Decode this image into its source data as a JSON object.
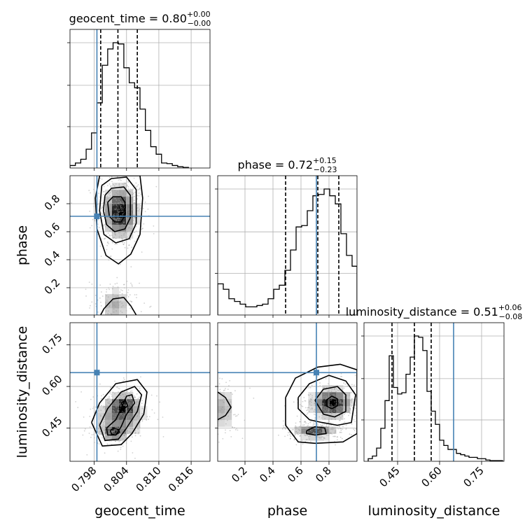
{
  "chart_data": {
    "type": "corner",
    "grid": true,
    "colors": {
      "histogram": "#000000",
      "quantile_line": "#000000",
      "truth": "#4682b4",
      "samples": "#9a9a9a",
      "grid": "#b0b0b0"
    },
    "parameters": [
      {
        "name": "geocent_time",
        "label": "geocent_time",
        "range": [
          0.7935,
          0.8195
        ],
        "ticks": [
          0.798,
          0.804,
          0.81,
          0.816
        ],
        "tick_labels": [
          "0.798",
          "0.804",
          "0.810",
          "0.816"
        ],
        "truth": 0.7985,
        "quantiles": [
          0.7992,
          0.8024,
          0.806
        ],
        "title": {
          "prefix": "geocent_time = ",
          "value": "0.80",
          "plus": "+0.00",
          "minus": "−0.00"
        },
        "hist": {
          "edges": [
            0.7935,
            0.7945,
            0.7955,
            0.7965,
            0.7975,
            0.7985,
            0.7995,
            0.8005,
            0.8015,
            0.8025,
            0.8035,
            0.8045,
            0.8055,
            0.8065,
            0.8075,
            0.8085,
            0.8095,
            0.8105,
            0.8115,
            0.8125,
            0.8135,
            0.8145,
            0.8155
          ],
          "counts": [
            0.02,
            0.04,
            0.07,
            0.15,
            0.28,
            0.52,
            0.82,
            0.95,
            1.0,
            0.99,
            0.8,
            0.68,
            0.64,
            0.47,
            0.3,
            0.17,
            0.11,
            0.04,
            0.035,
            0.02,
            0.01,
            0.005
          ]
        }
      },
      {
        "name": "phase",
        "label": "phase",
        "range": [
          0.005,
          1.0
        ],
        "ticks": [
          0.2,
          0.4,
          0.6,
          0.8
        ],
        "tick_labels": [
          "0.2",
          "0.4",
          "0.6",
          "0.8"
        ],
        "truth": 0.71,
        "quantiles": [
          0.49,
          0.72,
          0.87
        ],
        "title": {
          "prefix": "phase = ",
          "value": "0.72",
          "plus": "+0.15",
          "minus": "−0.23"
        },
        "hist": {
          "edges": [
            0.005,
            0.045,
            0.085,
            0.125,
            0.165,
            0.205,
            0.245,
            0.285,
            0.325,
            0.365,
            0.405,
            0.445,
            0.485,
            0.525,
            0.565,
            0.605,
            0.645,
            0.685,
            0.725,
            0.765,
            0.805,
            0.845,
            0.885,
            0.925,
            0.965,
            1.0
          ],
          "counts": [
            0.23,
            0.19,
            0.12,
            0.1,
            0.08,
            0.06,
            0.06,
            0.07,
            0.08,
            0.12,
            0.19,
            0.22,
            0.33,
            0.48,
            0.65,
            0.66,
            0.77,
            0.88,
            0.89,
            0.93,
            0.88,
            0.82,
            0.6,
            0.44,
            0.36
          ]
        }
      },
      {
        "name": "luminosity_distance",
        "label": "luminosity_distance",
        "range": [
          0.33,
          0.83
        ],
        "ticks": [
          0.45,
          0.6,
          0.75
        ],
        "tick_labels": [
          "0.45",
          "0.60",
          "0.75"
        ],
        "truth": 0.65,
        "quantiles": [
          0.43,
          0.51,
          0.57
        ],
        "title": {
          "prefix": "luminosity_distance = ",
          "value": "0.51",
          "plus": "+0.06",
          "minus": "−0.08"
        },
        "hist": {
          "edges": [
            0.345,
            0.36,
            0.375,
            0.39,
            0.405,
            0.42,
            0.435,
            0.45,
            0.465,
            0.48,
            0.495,
            0.51,
            0.525,
            0.54,
            0.555,
            0.57,
            0.585,
            0.6,
            0.615,
            0.63,
            0.645,
            0.66,
            0.675,
            0.69,
            0.705,
            0.72,
            0.735,
            0.75,
            0.765,
            0.78,
            0.795,
            0.81,
            0.825
          ],
          "counts": [
            0.02,
            0.04,
            0.1,
            0.25,
            0.46,
            0.8,
            0.56,
            0.51,
            0.52,
            0.66,
            0.79,
            0.95,
            0.94,
            0.84,
            0.53,
            0.38,
            0.28,
            0.16,
            0.12,
            0.09,
            0.09,
            0.06,
            0.05,
            0.04,
            0.03,
            0.03,
            0.02,
            0.02,
            0.01,
            0.005,
            0.005,
            0.005
          ]
        }
      }
    ],
    "pairs": [
      {
        "x": "geocent_time",
        "y": "phase",
        "blobs": [
          {
            "cx": 0.8028,
            "cy": 0.74,
            "sx": 0.0014,
            "sy": 0.085,
            "w": 1.0
          },
          {
            "cx": 0.8018,
            "cy": 0.08,
            "sx": 0.0014,
            "sy": 0.06,
            "w": 0.25
          }
        ],
        "contours": [
          [
            [
              0.8005,
              0.81
            ],
            [
              0.8015,
              0.85
            ],
            [
              0.803,
              0.85
            ],
            [
              0.8037,
              0.81
            ],
            [
              0.8037,
              0.72
            ],
            [
              0.803,
              0.67
            ],
            [
              0.8018,
              0.67
            ],
            [
              0.8008,
              0.71
            ],
            [
              0.8005,
              0.81
            ]
          ],
          [
            [
              0.8,
              0.86
            ],
            [
              0.8012,
              0.91
            ],
            [
              0.8035,
              0.92
            ],
            [
              0.8047,
              0.86
            ],
            [
              0.8047,
              0.7
            ],
            [
              0.8037,
              0.62
            ],
            [
              0.8018,
              0.6
            ],
            [
              0.8003,
              0.65
            ],
            [
              0.7997,
              0.75
            ],
            [
              0.8,
              0.86
            ]
          ],
          [
            [
              0.7994,
              0.93
            ],
            [
              0.8012,
              0.98
            ],
            [
              0.804,
              0.99
            ],
            [
              0.8058,
              0.9
            ],
            [
              0.8058,
              0.66
            ],
            [
              0.8045,
              0.55
            ],
            [
              0.802,
              0.52
            ],
            [
              0.7998,
              0.58
            ],
            [
              0.799,
              0.75
            ],
            [
              0.7994,
              0.93
            ]
          ],
          [
            [
              0.799,
              1.0
            ],
            [
              0.8065,
              1.0
            ],
            [
              0.807,
              0.84
            ],
            [
              0.8065,
              0.58
            ],
            [
              0.8048,
              0.44
            ],
            [
              0.8025,
              0.37
            ],
            [
              0.8002,
              0.43
            ],
            [
              0.7985,
              0.62
            ],
            [
              0.7982,
              0.84
            ],
            [
              0.799,
              1.0
            ]
          ],
          [
            [
              0.7992,
              0.005
            ],
            [
              0.7998,
              0.05
            ],
            [
              0.8015,
              0.12
            ],
            [
              0.8035,
              0.13
            ],
            [
              0.8048,
              0.07
            ],
            [
              0.8058,
              0.005
            ]
          ]
        ]
      },
      {
        "x": "geocent_time",
        "y": "luminosity_distance",
        "blobs": [
          {
            "cx": 0.8017,
            "cy": 0.435,
            "sx": 0.0011,
            "sy": 0.012,
            "w": 1.0
          },
          {
            "cx": 0.8035,
            "cy": 0.53,
            "sx": 0.0013,
            "sy": 0.02,
            "w": 0.95
          },
          {
            "cx": 0.8028,
            "cy": 0.49,
            "sx": 0.0022,
            "sy": 0.035,
            "w": 0.55
          }
        ],
        "contours": [
          [
            [
              0.801,
              0.44
            ],
            [
              0.8015,
              0.45
            ],
            [
              0.8025,
              0.445
            ],
            [
              0.8027,
              0.435
            ],
            [
              0.802,
              0.425
            ],
            [
              0.8012,
              0.428
            ],
            [
              0.801,
              0.44
            ]
          ],
          [
            [
              0.803,
              0.54
            ],
            [
              0.8038,
              0.55
            ],
            [
              0.8042,
              0.53
            ],
            [
              0.8036,
              0.52
            ],
            [
              0.803,
              0.54
            ]
          ],
          [
            [
              0.8003,
              0.45
            ],
            [
              0.802,
              0.48
            ],
            [
              0.803,
              0.52
            ],
            [
              0.804,
              0.565
            ],
            [
              0.805,
              0.57
            ],
            [
              0.8055,
              0.54
            ],
            [
              0.804,
              0.5
            ],
            [
              0.803,
              0.455
            ],
            [
              0.802,
              0.425
            ],
            [
              0.8005,
              0.425
            ],
            [
              0.8003,
              0.45
            ]
          ],
          [
            [
              0.799,
              0.46
            ],
            [
              0.8005,
              0.52
            ],
            [
              0.803,
              0.58
            ],
            [
              0.8055,
              0.6
            ],
            [
              0.8068,
              0.57
            ],
            [
              0.806,
              0.51
            ],
            [
              0.804,
              0.45
            ],
            [
              0.8025,
              0.41
            ],
            [
              0.8,
              0.405
            ],
            [
              0.799,
              0.46
            ]
          ],
          [
            [
              0.7975,
              0.47
            ],
            [
              0.799,
              0.54
            ],
            [
              0.802,
              0.61
            ],
            [
              0.806,
              0.625
            ],
            [
              0.8078,
              0.58
            ],
            [
              0.8072,
              0.5
            ],
            [
              0.805,
              0.43
            ],
            [
              0.803,
              0.39
            ],
            [
              0.7995,
              0.385
            ],
            [
              0.7975,
              0.47
            ]
          ]
        ]
      },
      {
        "x": "phase",
        "y": "luminosity_distance",
        "blobs": [
          {
            "cx": 0.82,
            "cy": 0.54,
            "sx": 0.07,
            "sy": 0.025,
            "w": 1.0
          },
          {
            "cx": 0.7,
            "cy": 0.44,
            "sx": 0.07,
            "sy": 0.012,
            "w": 0.7
          },
          {
            "cx": 0.04,
            "cy": 0.52,
            "sx": 0.05,
            "sy": 0.04,
            "w": 0.25
          }
        ],
        "contours": [
          [
            [
              0.78,
              0.55
            ],
            [
              0.82,
              0.565
            ],
            [
              0.86,
              0.555
            ],
            [
              0.86,
              0.53
            ],
            [
              0.82,
              0.52
            ],
            [
              0.78,
              0.53
            ],
            [
              0.78,
              0.55
            ]
          ],
          [
            [
              0.64,
              0.44
            ],
            [
              0.7,
              0.455
            ],
            [
              0.77,
              0.45
            ],
            [
              0.78,
              0.43
            ],
            [
              0.7,
              0.425
            ],
            [
              0.64,
              0.43
            ],
            [
              0.64,
              0.44
            ]
          ],
          [
            [
              0.7,
              0.55
            ],
            [
              0.76,
              0.59
            ],
            [
              0.86,
              0.6
            ],
            [
              0.92,
              0.57
            ],
            [
              0.92,
              0.51
            ],
            [
              0.84,
              0.49
            ],
            [
              0.76,
              0.5
            ],
            [
              0.7,
              0.55
            ]
          ],
          [
            [
              0.58,
              0.56
            ],
            [
              0.66,
              0.61
            ],
            [
              0.8,
              0.64
            ],
            [
              0.92,
              0.62
            ],
            [
              0.99,
              0.57
            ],
            [
              0.96,
              0.47
            ],
            [
              0.86,
              0.46
            ],
            [
              0.75,
              0.47
            ],
            [
              0.66,
              0.48
            ],
            [
              0.58,
              0.52
            ],
            [
              0.58,
              0.56
            ]
          ],
          [
            [
              0.49,
              0.56
            ],
            [
              0.56,
              0.63
            ],
            [
              0.72,
              0.67
            ],
            [
              0.88,
              0.68
            ],
            [
              1.0,
              0.66
            ],
            [
              1.0,
              0.43
            ],
            [
              0.9,
              0.4
            ],
            [
              0.7,
              0.395
            ],
            [
              0.58,
              0.4
            ],
            [
              0.49,
              0.46
            ],
            [
              0.49,
              0.56
            ]
          ],
          [
            [
              0.005,
              0.58
            ],
            [
              0.06,
              0.56
            ],
            [
              0.1,
              0.525
            ],
            [
              0.06,
              0.495
            ],
            [
              0.005,
              0.48
            ]
          ]
        ]
      }
    ]
  }
}
